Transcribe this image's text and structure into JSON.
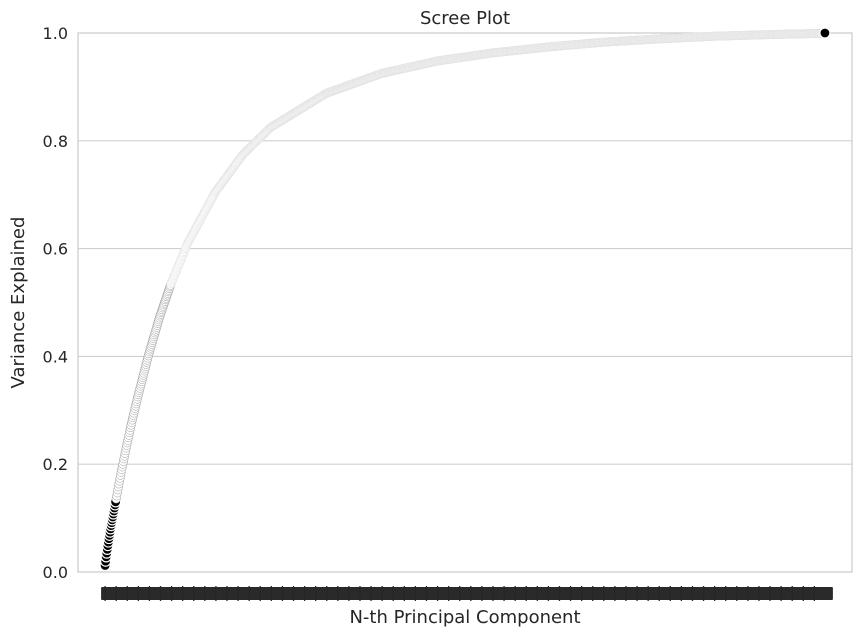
{
  "chart_data": {
    "type": "scatter",
    "title": "Scree Plot",
    "xlabel": "N-th Principal Component",
    "ylabel": "Variance Explained",
    "ylim": [
      0,
      1.0
    ],
    "yticks": [
      "0.0",
      "0.2",
      "0.4",
      "0.6",
      "0.8",
      "1.0"
    ],
    "grid": "horizontal",
    "n_components": 1300,
    "x_tick_labels": "every component index (overlapping, unreadable)",
    "series": [
      {
        "marker_color": "#000000",
        "marker_edge": "#ffffff",
        "x": [
          1,
          2,
          3,
          4,
          5,
          6,
          8,
          10,
          12,
          15,
          20,
          25,
          30,
          40,
          50,
          60,
          70,
          80,
          100,
          120,
          150,
          200,
          250,
          300,
          400,
          500,
          600,
          700,
          800,
          900,
          1000,
          1100,
          1200,
          1299,
          1300
        ],
        "y": [
          0.012,
          0.02,
          0.028,
          0.035,
          0.042,
          0.049,
          0.062,
          0.074,
          0.086,
          0.102,
          0.13,
          0.158,
          0.185,
          0.235,
          0.282,
          0.325,
          0.365,
          0.405,
          0.475,
          0.535,
          0.61,
          0.705,
          0.775,
          0.825,
          0.888,
          0.925,
          0.948,
          0.963,
          0.974,
          0.983,
          0.989,
          0.994,
          0.997,
          0.9995,
          1.0
        ]
      }
    ]
  }
}
